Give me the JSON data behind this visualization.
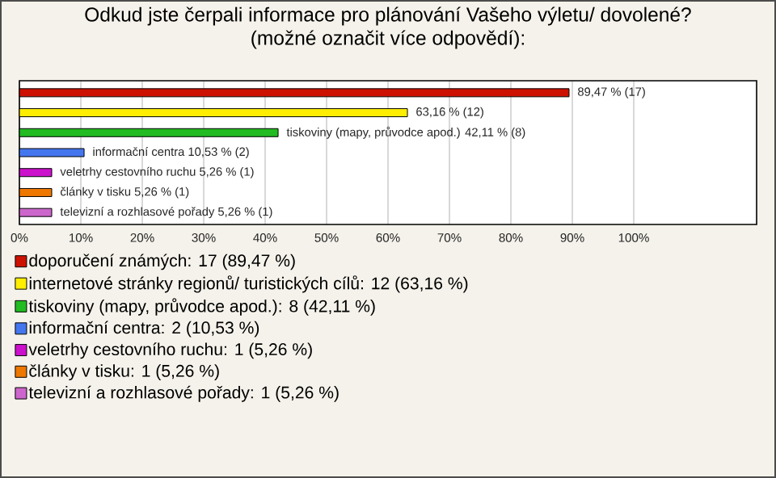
{
  "chart_data": {
    "type": "bar",
    "orientation": "horizontal",
    "title": "Odkud jste čerpali informace pro plánování Vašeho výletu/ dovolené?",
    "subtitle": "(možné označit více odpovědí):",
    "categories": [
      null,
      null,
      null,
      null,
      null,
      null,
      null
    ],
    "series": [
      {
        "name": "doporučení známých: 17 (89,47 %)",
        "color": "#cc1100",
        "values": [
          89.47,
          null,
          null,
          null,
          null,
          null,
          null
        ],
        "value_labels": [
          "89,47 % (17)",
          null,
          null,
          null,
          null,
          null,
          null
        ]
      },
      {
        "name": "internetové stránky regionů/ turistických cílů: 12 (63,16 %)",
        "color": "#ffee00",
        "values": [
          null,
          63.16,
          null,
          null,
          null,
          null,
          null
        ],
        "value_labels": [
          null,
          "63,16 % (12)",
          null,
          null,
          null,
          null,
          null
        ]
      },
      {
        "name": "tiskoviny (mapy, průvodce apod.): 8 (42,11 %)",
        "color": "#22bb22",
        "values": [
          null,
          null,
          42.11,
          null,
          null,
          null,
          null
        ],
        "value_labels": [
          null,
          null,
          "tiskoviny (mapy, průvodce apod.) 42,11 % (8)",
          null,
          null,
          null,
          null
        ]
      },
      {
        "name": "informační centra: 2 (10,53 %)",
        "color": "#4477ee",
        "values": [
          null,
          null,
          null,
          10.53,
          null,
          null,
          null
        ],
        "value_labels": [
          null,
          null,
          null,
          "informační centra 10,53 % (2)",
          null,
          null,
          null
        ]
      },
      {
        "name": "veletrhy cestovního ruchu: 1 (5,26 %)",
        "color": "#cc11cc",
        "values": [
          null,
          null,
          null,
          null,
          5.26,
          null,
          null
        ],
        "value_labels": [
          null,
          null,
          null,
          null,
          "veletrhy cestovního ruchu 5,26 % (1)",
          null,
          null
        ]
      },
      {
        "name": "články v tisku: 1 (5,26 %)",
        "color": "#ee7700",
        "values": [
          null,
          null,
          null,
          null,
          null,
          5.26,
          null
        ],
        "value_labels": [
          null,
          null,
          null,
          null,
          null,
          "články v tisku 5,26 % (1)",
          null
        ]
      },
      {
        "name": "televizní a rozhlasové pořady: 1 (5,26 %)",
        "color": "#cc66cc",
        "values": [
          null,
          null,
          null,
          null,
          null,
          null,
          5.26
        ],
        "value_labels": [
          null,
          null,
          null,
          null,
          null,
          null,
          "televizní a rozhlasové pořady 5,26 % (1)"
        ]
      }
    ],
    "xlim": [
      0,
      120
    ],
    "xticks": [
      {
        "value": 0,
        "label": "0%"
      },
      {
        "value": 10,
        "label": "10%"
      },
      {
        "value": 20,
        "label": "20%"
      },
      {
        "value": 30,
        "label": "30%"
      },
      {
        "value": 40,
        "label": "40%"
      },
      {
        "value": 50,
        "label": "50%"
      },
      {
        "value": 60,
        "label": "60%"
      },
      {
        "value": 70,
        "label": "70%"
      },
      {
        "value": 80,
        "label": "80%"
      },
      {
        "value": 90,
        "label": "90%"
      },
      {
        "value": 100,
        "label": "100%"
      }
    ],
    "grid": "x",
    "tick_labels": "x",
    "legend": "bottom"
  }
}
